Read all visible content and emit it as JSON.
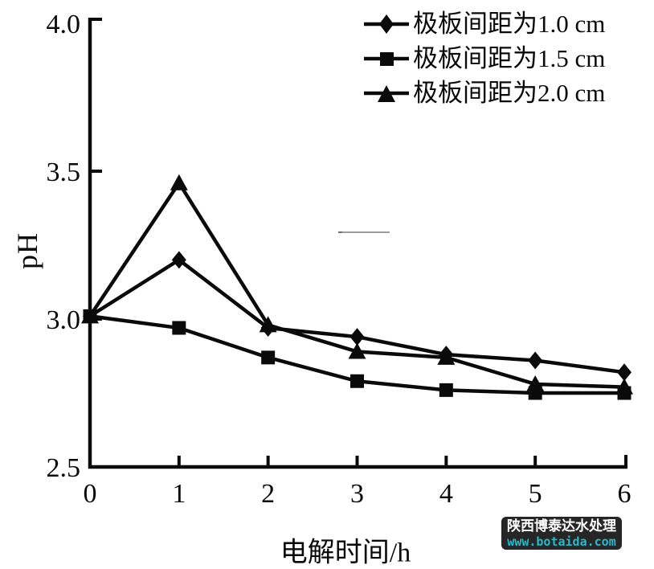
{
  "chart_data": {
    "type": "line",
    "x": [
      0,
      1,
      2,
      3,
      4,
      5,
      6
    ],
    "series": [
      {
        "name": "极板间距为1.0 cm",
        "marker": "diamond",
        "values": [
          3.01,
          3.2,
          2.97,
          2.94,
          2.88,
          2.86,
          2.82
        ]
      },
      {
        "name": "极板间距为1.5 cm",
        "marker": "square",
        "values": [
          3.01,
          2.97,
          2.87,
          2.79,
          2.76,
          2.75,
          2.75
        ]
      },
      {
        "name": "极板间距为2.0 cm",
        "marker": "triangle",
        "values": [
          3.01,
          3.46,
          2.98,
          2.89,
          2.87,
          2.78,
          2.77
        ]
      }
    ],
    "title": "",
    "xlabel": "电解时间/h",
    "ylabel": "pH",
    "xlim": [
      0,
      6
    ],
    "ylim": [
      2.5,
      4.0
    ],
    "x_tick_labels": [
      "0",
      "1",
      "2",
      "3",
      "4",
      "5",
      "6"
    ],
    "y_tick_labels": [
      "4.0",
      "3.5",
      "3.0",
      "2.5"
    ],
    "grid": false,
    "legend_position": "top-right",
    "line_color": "#0a0a0a"
  },
  "watermark": {
    "line1": "陕西博泰达水处理",
    "line2": "www.botaida.com",
    "bg_color": "#262626",
    "line1_color": "#ffffff",
    "line2_color": "#2bb9ca"
  }
}
